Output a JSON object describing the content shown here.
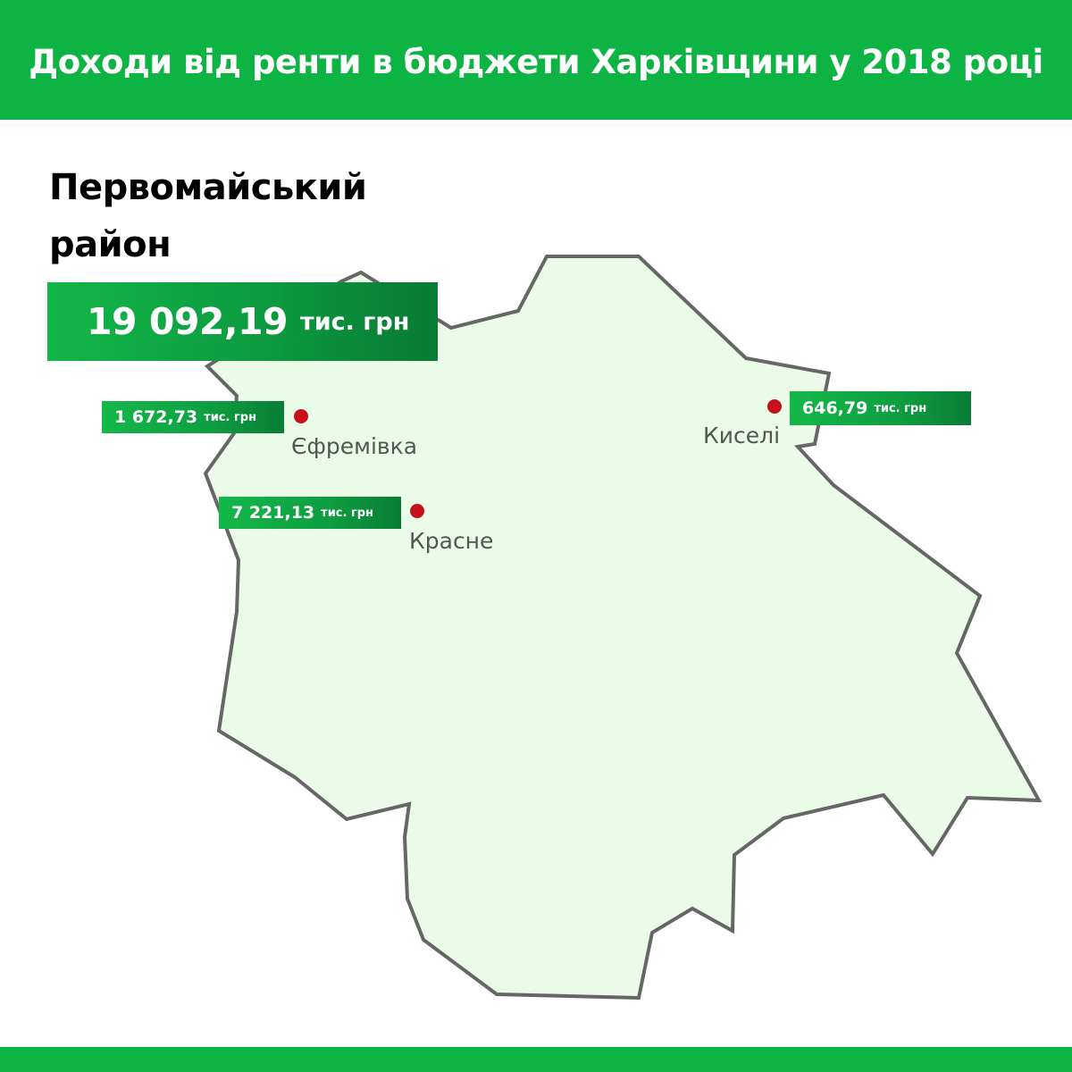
{
  "title": "Доходи від ренти в бюджети Харківщини у 2018 році",
  "district": {
    "name": "Первомайський\nрайон",
    "total_value": "19 092,19",
    "total_unit": "тис. грн"
  },
  "villages": [
    {
      "name": "Єфремівка",
      "value": "1 672,73",
      "unit": "тис. грн"
    },
    {
      "name": "Красне",
      "value": "7 221,13",
      "unit": "тис. грн"
    },
    {
      "name": "Киселі",
      "value": "646,79",
      "unit": "тис. грн"
    }
  ],
  "colors": {
    "brand_green": "#0db443",
    "map_fill": "#eafbe8",
    "map_border": "#666666",
    "marker": "#c8101a"
  }
}
